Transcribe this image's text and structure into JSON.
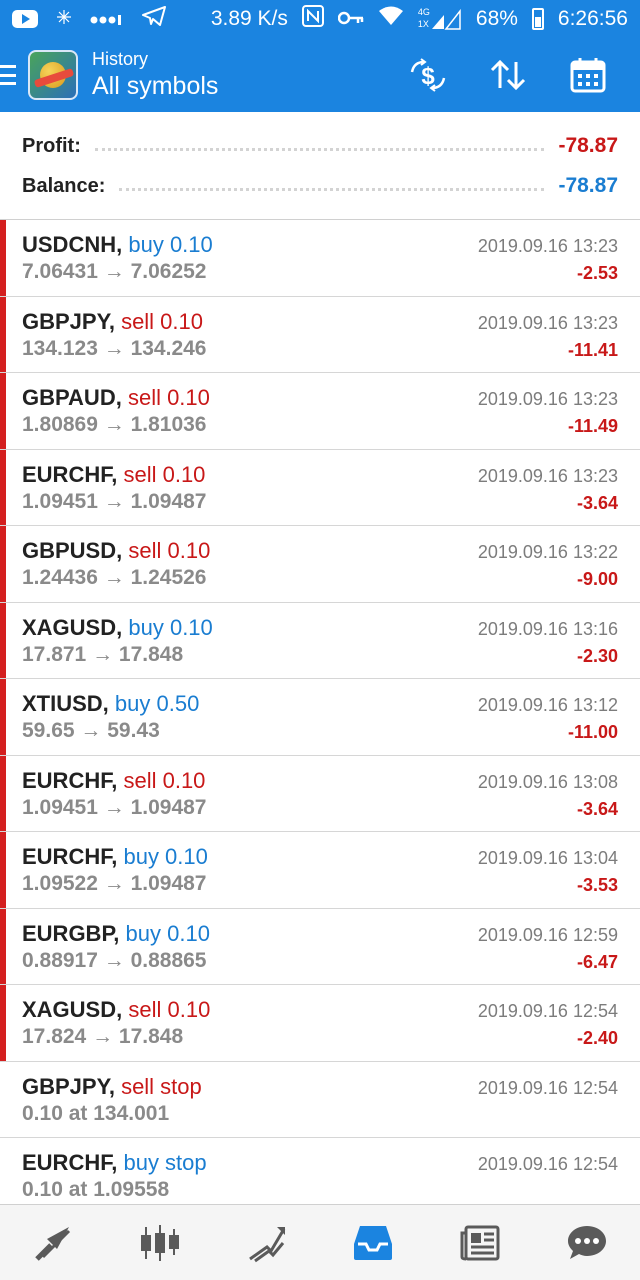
{
  "status_bar": {
    "speed": "3.89 K/s",
    "signal_4g": "4G",
    "signal_1x": "1X",
    "battery": "68%",
    "time": "6:26:56"
  },
  "header": {
    "subtitle": "History",
    "title": "All symbols",
    "actions": [
      "currency-filter-icon",
      "sort-icon",
      "calendar-icon"
    ]
  },
  "summary": {
    "profit_label": "Profit:",
    "profit_value": "-78.87",
    "balance_label": "Balance:",
    "balance_value": "-78.87"
  },
  "trades": [
    {
      "symbol": "USDCNH,",
      "action": "buy 0.10",
      "type": "buy",
      "prices": "7.06431 → 7.06252",
      "time": "2019.09.16 13:23",
      "profit": "-2.53",
      "bar": true
    },
    {
      "symbol": "GBPJPY,",
      "action": "sell 0.10",
      "type": "sell",
      "prices": "134.123 → 134.246",
      "time": "2019.09.16 13:23",
      "profit": "-11.41",
      "bar": true
    },
    {
      "symbol": "GBPAUD,",
      "action": "sell 0.10",
      "type": "sell",
      "prices": "1.80869 → 1.81036",
      "time": "2019.09.16 13:23",
      "profit": "-11.49",
      "bar": true
    },
    {
      "symbol": "EURCHF,",
      "action": "sell 0.10",
      "type": "sell",
      "prices": "1.09451 → 1.09487",
      "time": "2019.09.16 13:23",
      "profit": "-3.64",
      "bar": true
    },
    {
      "symbol": "GBPUSD,",
      "action": "sell 0.10",
      "type": "sell",
      "prices": "1.24436 → 1.24526",
      "time": "2019.09.16 13:22",
      "profit": "-9.00",
      "bar": true
    },
    {
      "symbol": "XAGUSD,",
      "action": "buy 0.10",
      "type": "buy",
      "prices": "17.871 → 17.848",
      "time": "2019.09.16 13:16",
      "profit": "-2.30",
      "bar": true
    },
    {
      "symbol": "XTIUSD,",
      "action": "buy 0.50",
      "type": "buy",
      "prices": "59.65 → 59.43",
      "time": "2019.09.16 13:12",
      "profit": "-11.00",
      "bar": true
    },
    {
      "symbol": "EURCHF,",
      "action": "sell 0.10",
      "type": "sell",
      "prices": "1.09451 → 1.09487",
      "time": "2019.09.16 13:08",
      "profit": "-3.64",
      "bar": true
    },
    {
      "symbol": "EURCHF,",
      "action": "buy 0.10",
      "type": "buy",
      "prices": "1.09522 → 1.09487",
      "time": "2019.09.16 13:04",
      "profit": "-3.53",
      "bar": true
    },
    {
      "symbol": "EURGBP,",
      "action": "buy 0.10",
      "type": "buy",
      "prices": "0.88917 → 0.88865",
      "time": "2019.09.16 12:59",
      "profit": "-6.47",
      "bar": true
    },
    {
      "symbol": "XAGUSD,",
      "action": "sell 0.10",
      "type": "sell",
      "prices": "17.824 → 17.848",
      "time": "2019.09.16 12:54",
      "profit": "-2.40",
      "bar": true
    },
    {
      "symbol": "GBPJPY,",
      "action": "sell stop",
      "type": "sell",
      "prices": "0.10 at 134.001",
      "time": "2019.09.16 12:54",
      "profit": "",
      "bar": false
    },
    {
      "symbol": "EURCHF,",
      "action": "buy stop",
      "type": "buy",
      "prices": "0.10 at 1.09558",
      "time": "2019.09.16 12:54",
      "profit": "",
      "bar": false
    }
  ],
  "bottom_nav": [
    "quotes-icon",
    "chart-icon",
    "trade-icon",
    "history-icon",
    "news-icon",
    "chat-icon"
  ],
  "colors": {
    "primary": "#1b84e0",
    "sell": "#c81818",
    "buy": "#1a7dd1",
    "active_nav": "#1b84e0",
    "inactive_nav": "#5a5a5a"
  }
}
